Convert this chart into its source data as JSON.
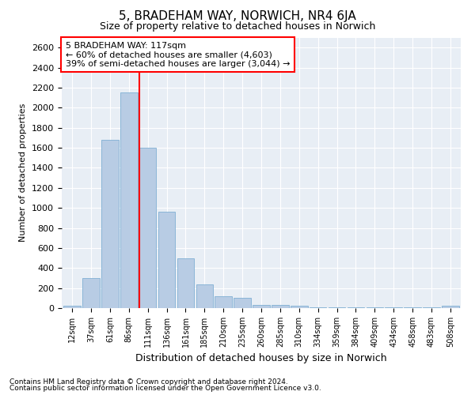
{
  "title": "5, BRADEHAM WAY, NORWICH, NR4 6JA",
  "subtitle": "Size of property relative to detached houses in Norwich",
  "xlabel": "Distribution of detached houses by size in Norwich",
  "ylabel": "Number of detached properties",
  "footnote1": "Contains HM Land Registry data © Crown copyright and database right 2024.",
  "footnote2": "Contains public sector information licensed under the Open Government Licence v3.0.",
  "categories": [
    "12sqm",
    "37sqm",
    "61sqm",
    "86sqm",
    "111sqm",
    "136sqm",
    "161sqm",
    "185sqm",
    "210sqm",
    "235sqm",
    "260sqm",
    "285sqm",
    "310sqm",
    "334sqm",
    "359sqm",
    "384sqm",
    "409sqm",
    "434sqm",
    "458sqm",
    "483sqm",
    "508sqm"
  ],
  "values": [
    25,
    300,
    1680,
    2150,
    1600,
    960,
    500,
    240,
    120,
    100,
    35,
    35,
    25,
    5,
    5,
    5,
    5,
    5,
    5,
    5,
    25
  ],
  "bar_color": "#b8cce4",
  "bar_edgecolor": "#7fafd4",
  "vline_index": 4,
  "vline_color": "red",
  "annotation_line1": "5 BRADEHAM WAY: 117sqm",
  "annotation_line2": "← 60% of detached houses are smaller (4,603)",
  "annotation_line3": "39% of semi-detached houses are larger (3,044) →",
  "annotation_box_color": "white",
  "annotation_box_edgecolor": "red",
  "ylim": [
    0,
    2700
  ],
  "yticks": [
    0,
    200,
    400,
    600,
    800,
    1000,
    1200,
    1400,
    1600,
    1800,
    2000,
    2200,
    2400,
    2600
  ],
  "bg_color": "#e8eef5",
  "grid_color": "white",
  "title_fontsize": 11,
  "subtitle_fontsize": 9
}
